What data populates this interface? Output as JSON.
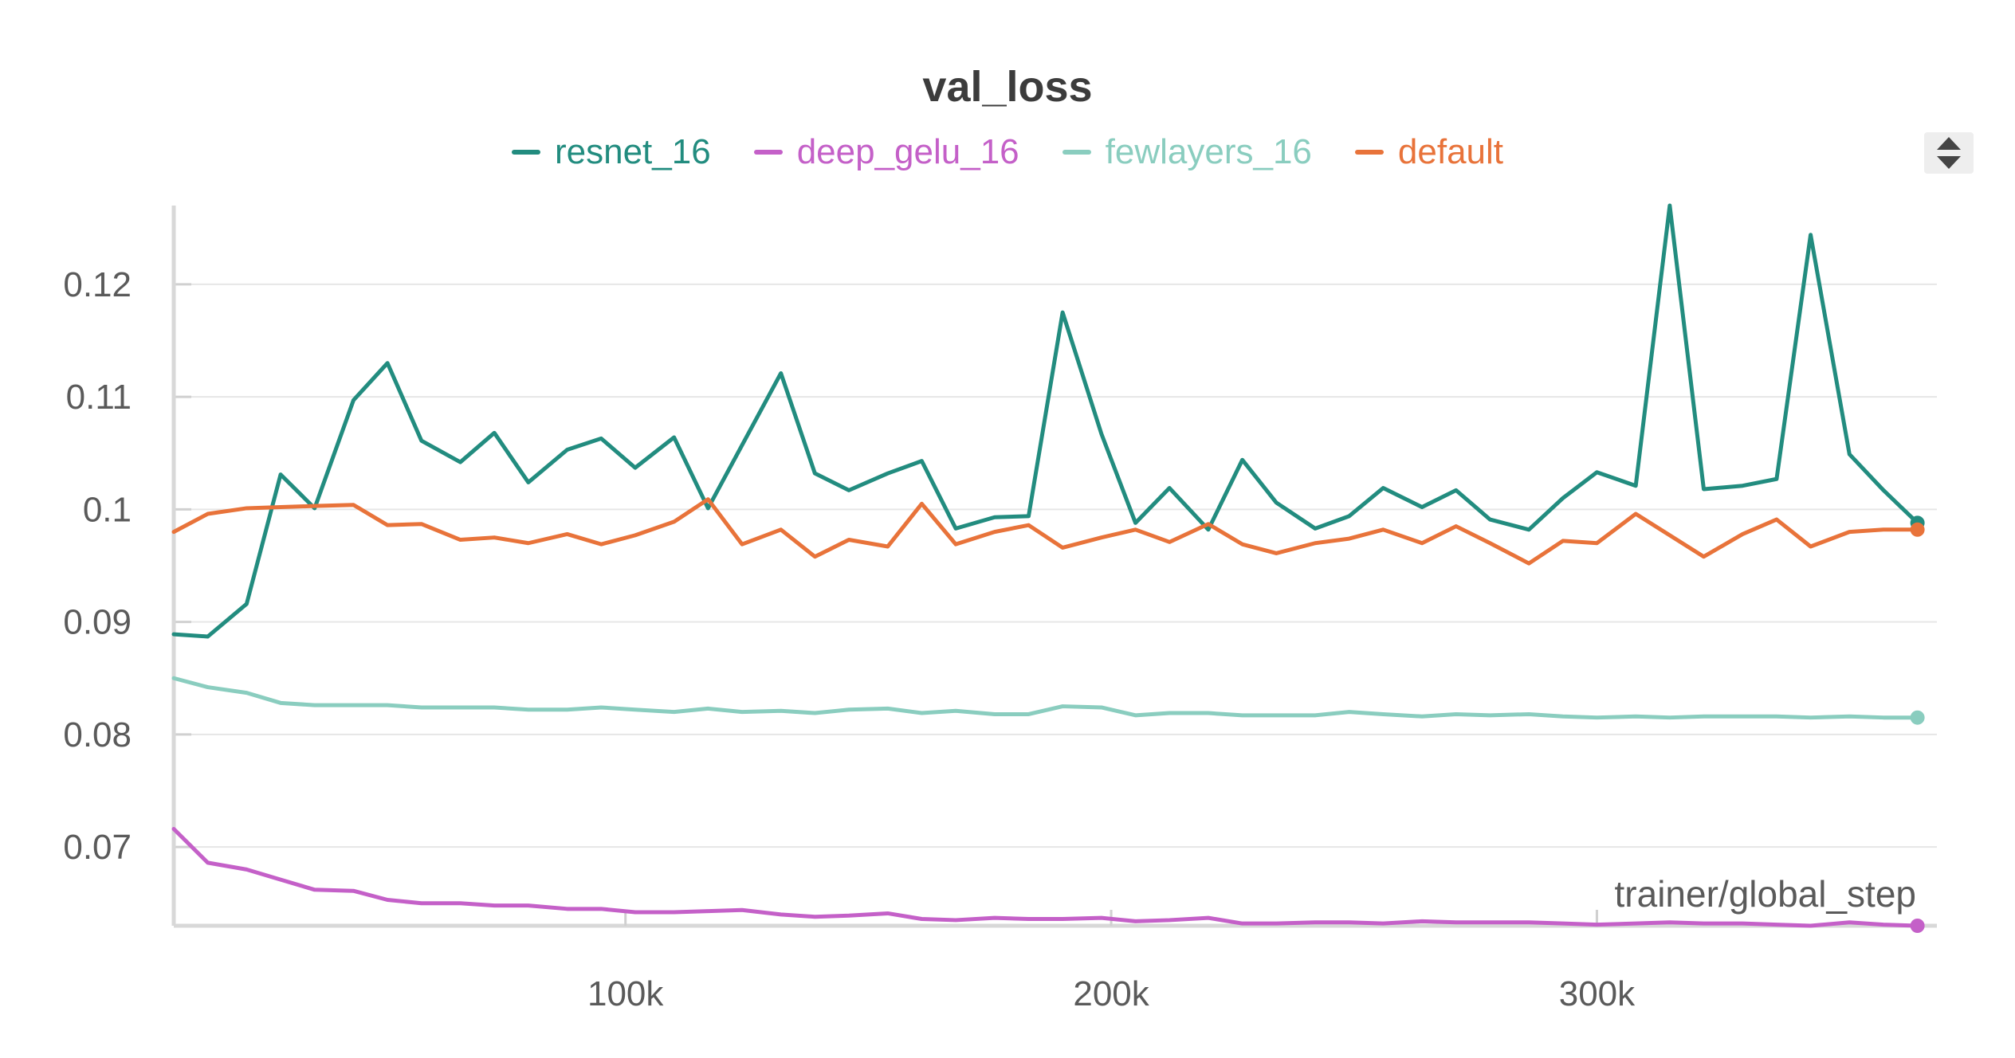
{
  "chart_data": {
    "type": "line",
    "title": "val_loss",
    "xlabel": "trainer/global_step",
    "ylabel": "",
    "xlim": [
      7000,
      370000
    ],
    "ylim": [
      0.063,
      0.127
    ],
    "x_ticks": [
      100000,
      200000,
      300000
    ],
    "x_tick_labels": [
      "100k",
      "200k",
      "300k"
    ],
    "y_ticks": [
      0.07,
      0.08,
      0.09,
      0.1,
      0.11,
      0.12
    ],
    "y_tick_labels": [
      "0.07",
      "0.08",
      "0.09",
      "0.1",
      "0.11",
      "0.12"
    ],
    "grid": true,
    "legend_position": "top",
    "x": [
      7000,
      14000,
      22000,
      29000,
      36000,
      44000,
      51000,
      58000,
      66000,
      73000,
      80000,
      88000,
      95000,
      102000,
      110000,
      117000,
      124000,
      132000,
      139000,
      146000,
      154000,
      161000,
      168000,
      176000,
      183000,
      190000,
      198000,
      205000,
      212000,
      220000,
      227000,
      234000,
      242000,
      249000,
      256000,
      264000,
      271000,
      278000,
      286000,
      293000,
      300000,
      308000,
      315000,
      322000,
      330000,
      337000,
      344000,
      352000,
      359000,
      366000
    ],
    "series": [
      {
        "name": "resnet_16",
        "color": "#228c7f",
        "values": [
          0.0889,
          0.0887,
          0.0916,
          0.1031,
          0.1001,
          0.1097,
          0.113,
          0.1061,
          0.1042,
          0.1068,
          0.1024,
          0.1053,
          0.1063,
          0.1037,
          0.1064,
          0.1001,
          0.1057,
          0.1121,
          0.1032,
          0.1017,
          0.1032,
          0.1043,
          0.0983,
          0.0993,
          0.0994,
          0.1175,
          0.1067,
          0.0988,
          0.1019,
          0.0982,
          0.1044,
          0.1006,
          0.0983,
          0.0994,
          0.1019,
          0.1002,
          0.1017,
          0.0991,
          0.0982,
          0.101,
          0.1033,
          0.1021,
          0.127,
          0.1018,
          0.1021,
          0.1027,
          0.1244,
          0.1049,
          0.1017,
          0.0988
        ]
      },
      {
        "name": "deep_gelu_16",
        "color": "#c460c8",
        "values": [
          0.0716,
          0.0686,
          0.068,
          0.0671,
          0.0662,
          0.0661,
          0.0653,
          0.065,
          0.065,
          0.0648,
          0.0648,
          0.0645,
          0.0645,
          0.0642,
          0.0642,
          0.0643,
          0.0644,
          0.064,
          0.0638,
          0.0639,
          0.0641,
          0.0636,
          0.0635,
          0.0637,
          0.0636,
          0.0636,
          0.0637,
          0.0634,
          0.0635,
          0.0637,
          0.0632,
          0.0632,
          0.0633,
          0.0633,
          0.0632,
          0.0634,
          0.0633,
          0.0633,
          0.0633,
          0.0632,
          0.0631,
          0.0632,
          0.0633,
          0.0632,
          0.0632,
          0.0631,
          0.063,
          0.0633,
          0.0631,
          0.063
        ]
      },
      {
        "name": "fewlayers_16",
        "color": "#8acdbf",
        "values": [
          0.085,
          0.0842,
          0.0837,
          0.0828,
          0.0826,
          0.0826,
          0.0826,
          0.0824,
          0.0824,
          0.0824,
          0.0822,
          0.0822,
          0.0824,
          0.0822,
          0.082,
          0.0823,
          0.082,
          0.0821,
          0.0819,
          0.0822,
          0.0823,
          0.0819,
          0.0821,
          0.0818,
          0.0818,
          0.0825,
          0.0824,
          0.0817,
          0.0819,
          0.0819,
          0.0817,
          0.0817,
          0.0817,
          0.082,
          0.0818,
          0.0816,
          0.0818,
          0.0817,
          0.0818,
          0.0816,
          0.0815,
          0.0816,
          0.0815,
          0.0816,
          0.0816,
          0.0816,
          0.0815,
          0.0816,
          0.0815,
          0.0815
        ]
      },
      {
        "name": "default",
        "color": "#e8733a",
        "values": [
          0.098,
          0.0996,
          0.1001,
          0.1002,
          0.1003,
          0.1004,
          0.0986,
          0.0987,
          0.0973,
          0.0975,
          0.097,
          0.0978,
          0.0969,
          0.0977,
          0.0989,
          0.1009,
          0.0969,
          0.0982,
          0.0958,
          0.0973,
          0.0967,
          0.1005,
          0.0969,
          0.098,
          0.0986,
          0.0966,
          0.0975,
          0.0982,
          0.0971,
          0.0987,
          0.0969,
          0.0961,
          0.097,
          0.0974,
          0.0982,
          0.097,
          0.0985,
          0.097,
          0.0952,
          0.0972,
          0.097,
          0.0996,
          0.0977,
          0.0958,
          0.0978,
          0.0991,
          0.0967,
          0.098,
          0.0982,
          0.0982
        ]
      }
    ]
  }
}
